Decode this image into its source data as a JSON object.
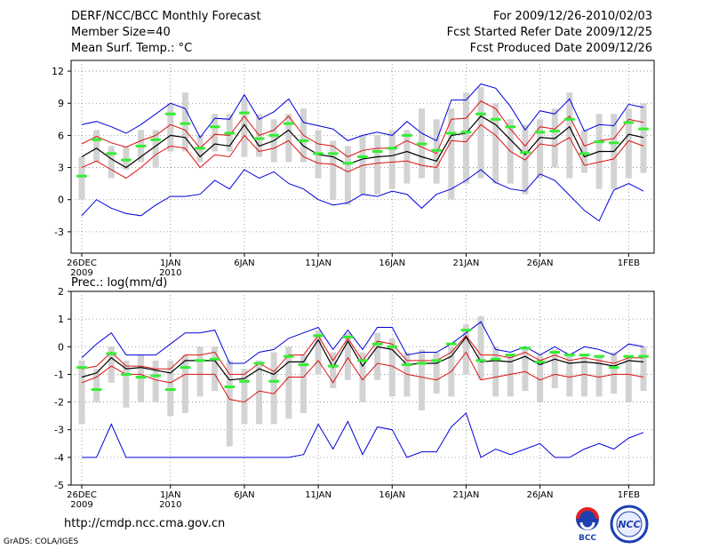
{
  "header": {
    "title": "DERF/NCC/BCC Monthly Forecast",
    "member_size": "Member Size=40",
    "variable": "Mean Surf. Temp.: °C",
    "period": "For 2009/12/26-2010/02/03",
    "started": "Fcst Started Refer Date 2009/12/25",
    "produced": "Fcst Produced Date 2009/12/26"
  },
  "footer": {
    "url": "http://cmdp.ncc.cma.gov.cn",
    "grads": "GrADS: COLA/IGES",
    "logo_left": "BCC",
    "logo_right": "NCC"
  },
  "colors": {
    "background": "#ffffff",
    "box": "#d3d3d3",
    "median": "#33ee33",
    "envelope": "#0000dd",
    "spread": "#dd1111",
    "mean": "#000000",
    "grid": "#888888"
  },
  "chart_data": [
    {
      "type": "line",
      "title": "Mean Surf. Temp.: °C",
      "ylim": [
        -5,
        13
      ],
      "yticks": [
        -3,
        0,
        3,
        6,
        9,
        12
      ],
      "xlabels": [
        {
          "day": 0,
          "text": "26DEC",
          "sub": "2009"
        },
        {
          "day": 6,
          "text": "1JAN",
          "sub": "2010"
        },
        {
          "day": 11,
          "text": "6JAN",
          "sub": ""
        },
        {
          "day": 16,
          "text": "11JAN",
          "sub": ""
        },
        {
          "day": 21,
          "text": "16JAN",
          "sub": ""
        },
        {
          "day": 26,
          "text": "21JAN",
          "sub": ""
        },
        {
          "day": 31,
          "text": "26JAN",
          "sub": ""
        },
        {
          "day": 37,
          "text": "1FEB",
          "sub": ""
        }
      ],
      "days": 39,
      "box_low": [
        0.0,
        3.5,
        2.0,
        2.8,
        3.5,
        3.0,
        4.5,
        4.5,
        3.5,
        4.5,
        4.5,
        4.0,
        4.0,
        3.5,
        3.5,
        3.5,
        2.0,
        0.0,
        -0.5,
        0.5,
        0.5,
        1.0,
        1.5,
        2.0,
        1.5,
        0.0,
        1.5,
        2.0,
        1.5,
        1.5,
        0.5,
        2.0,
        3.0,
        2.0,
        2.5,
        1.0,
        1.0,
        2.0,
        2.5
      ],
      "box_high": [
        4.0,
        6.5,
        5.0,
        5.0,
        6.5,
        6.5,
        9.0,
        10.0,
        6.0,
        8.0,
        8.0,
        9.5,
        8.0,
        7.5,
        8.0,
        8.5,
        6.5,
        5.5,
        5.0,
        6.0,
        6.0,
        6.5,
        6.5,
        8.5,
        7.5,
        8.5,
        10.0,
        10.5,
        9.0,
        7.5,
        7.0,
        7.5,
        8.5,
        10.0,
        6.5,
        8.0,
        8.0,
        8.5,
        9.0
      ],
      "median": [
        2.2,
        5.6,
        4.3,
        3.7,
        5.0,
        5.6,
        8.0,
        7.1,
        4.8,
        6.8,
        6.2,
        8.1,
        5.7,
        6.0,
        7.1,
        5.5,
        4.3,
        4.3,
        3.4,
        4.0,
        4.5,
        4.8,
        6.0,
        5.2,
        4.6,
        6.2,
        6.3,
        8.0,
        7.5,
        6.8,
        4.4,
        6.3,
        6.4,
        7.5,
        4.3,
        5.4,
        5.3,
        7.2,
        6.6
      ],
      "upper": [
        7.0,
        7.3,
        6.8,
        6.2,
        7.0,
        8.0,
        9.0,
        8.5,
        5.8,
        7.6,
        7.5,
        9.8,
        7.5,
        8.2,
        9.4,
        7.2,
        6.9,
        6.6,
        5.5,
        6.0,
        6.3,
        6.0,
        7.3,
        6.2,
        5.5,
        9.3,
        9.3,
        10.8,
        10.4,
        8.7,
        6.5,
        8.3,
        8.0,
        9.4,
        6.4,
        7.0,
        6.9,
        8.9,
        8.6
      ],
      "upper_spread": [
        5.2,
        5.9,
        5.3,
        4.9,
        5.5,
        6.0,
        7.0,
        6.5,
        4.8,
        6.1,
        6.0,
        7.8,
        6.0,
        6.5,
        7.8,
        6.0,
        5.2,
        5.0,
        4.0,
        4.6,
        4.8,
        4.8,
        5.5,
        4.9,
        4.3,
        7.5,
        7.6,
        9.2,
        8.5,
        6.6,
        5.0,
        6.8,
        6.6,
        7.8,
        5.0,
        5.5,
        5.7,
        7.5,
        7.2
      ],
      "mean": [
        4.0,
        4.8,
        3.8,
        3.0,
        4.0,
        5.0,
        6.0,
        5.8,
        4.0,
        5.2,
        5.0,
        7.0,
        5.0,
        5.5,
        6.5,
        5.0,
        4.2,
        4.0,
        3.3,
        3.8,
        4.0,
        4.1,
        4.5,
        4.0,
        3.6,
        6.0,
        6.2,
        7.8,
        7.0,
        5.6,
        4.2,
        5.8,
        5.7,
        6.8,
        4.0,
        4.5,
        4.5,
        6.1,
        5.8
      ],
      "lower_spread": [
        3.0,
        3.6,
        2.8,
        2.0,
        3.0,
        4.2,
        5.0,
        4.8,
        3.0,
        4.2,
        4.0,
        6.0,
        4.5,
        4.8,
        5.5,
        4.0,
        3.4,
        3.3,
        2.6,
        3.2,
        3.4,
        3.5,
        3.6,
        3.2,
        3.0,
        5.5,
        5.4,
        7.0,
        6.0,
        4.5,
        3.7,
        5.2,
        5.0,
        5.8,
        3.2,
        3.5,
        3.8,
        5.5,
        5.0
      ],
      "lower": [
        -1.5,
        0.0,
        -0.8,
        -1.3,
        -1.5,
        -0.5,
        0.3,
        0.3,
        0.5,
        1.8,
        1.0,
        2.8,
        2.0,
        2.6,
        1.5,
        1.0,
        0.0,
        -0.5,
        -0.3,
        0.5,
        0.3,
        0.8,
        0.5,
        -0.8,
        0.5,
        1.0,
        1.8,
        2.8,
        1.6,
        1.0,
        0.8,
        2.4,
        1.8,
        0.4,
        -1.0,
        -2.0,
        0.9,
        1.5,
        0.8
      ]
    },
    {
      "type": "line",
      "title": "Prec.: log(mm/d)",
      "ylim": [
        -5,
        2
      ],
      "yticks": [
        -5,
        -4,
        -3,
        -2,
        -1,
        0,
        1,
        2
      ],
      "xlabels": [
        {
          "day": 0,
          "text": "26DEC",
          "sub": "2009"
        },
        {
          "day": 6,
          "text": "1JAN",
          "sub": "2010"
        },
        {
          "day": 11,
          "text": "6JAN",
          "sub": ""
        },
        {
          "day": 16,
          "text": "11JAN",
          "sub": ""
        },
        {
          "day": 21,
          "text": "16JAN",
          "sub": ""
        },
        {
          "day": 26,
          "text": "21JAN",
          "sub": ""
        },
        {
          "day": 31,
          "text": "26JAN",
          "sub": ""
        },
        {
          "day": 37,
          "text": "1FEB",
          "sub": ""
        }
      ],
      "days": 39,
      "box_low": [
        -2.8,
        -2.0,
        -1.3,
        -2.2,
        -2.0,
        -2.0,
        -2.5,
        -2.4,
        -1.8,
        -1.6,
        -3.6,
        -2.8,
        -2.8,
        -2.8,
        -2.6,
        -2.4,
        -1.0,
        -1.5,
        -1.2,
        -2.0,
        -1.2,
        -1.8,
        -1.8,
        -2.3,
        -1.7,
        -1.8,
        -1.0,
        -1.2,
        -1.8,
        -1.8,
        -1.6,
        -2.0,
        -1.5,
        -1.8,
        -1.8,
        -1.8,
        -1.7,
        -2.0,
        -1.6
      ],
      "box_high": [
        -0.5,
        -0.8,
        0.0,
        -0.5,
        -0.3,
        -0.5,
        -0.5,
        -0.3,
        0.0,
        0.0,
        -0.5,
        -0.8,
        -0.5,
        -0.2,
        0.0,
        -0.3,
        0.6,
        -0.2,
        0.5,
        -0.2,
        0.5,
        0.3,
        -0.2,
        -0.1,
        -0.2,
        0.0,
        0.8,
        1.1,
        0.0,
        -0.3,
        0.0,
        -0.3,
        -0.1,
        -0.3,
        -0.3,
        -0.3,
        -0.2,
        -0.3,
        0.0
      ],
      "median": [
        -0.75,
        -1.55,
        -0.25,
        -1.0,
        -1.1,
        -1.05,
        -1.55,
        -0.75,
        -0.5,
        -0.45,
        -1.45,
        -1.25,
        -0.6,
        -1.25,
        -0.35,
        -0.65,
        0.4,
        -0.7,
        0.35,
        -0.5,
        0.1,
        0.0,
        -0.65,
        -0.6,
        -0.5,
        0.1,
        0.6,
        -0.5,
        -0.45,
        -0.3,
        -0.05,
        -0.55,
        -0.2,
        -0.3,
        -0.3,
        -0.35,
        -0.75,
        -0.35,
        -0.35
      ],
      "upper": [
        -0.4,
        0.1,
        0.5,
        -0.3,
        -0.3,
        -0.3,
        0.1,
        0.5,
        0.5,
        0.6,
        -0.6,
        -0.6,
        -0.2,
        -0.1,
        0.3,
        0.5,
        0.7,
        -0.1,
        0.6,
        -0.1,
        0.7,
        0.7,
        -0.3,
        -0.2,
        -0.2,
        0.1,
        0.5,
        0.9,
        -0.1,
        -0.2,
        0.0,
        -0.3,
        0.0,
        -0.3,
        0.0,
        -0.1,
        -0.3,
        0.1,
        0.0
      ],
      "upper_spread": [
        -0.8,
        -0.7,
        -0.2,
        -0.7,
        -0.7,
        -0.8,
        -0.8,
        -0.3,
        -0.3,
        -0.2,
        -1.0,
        -1.0,
        -0.6,
        -0.9,
        -0.3,
        -0.3,
        0.4,
        -0.5,
        0.3,
        -0.5,
        0.2,
        0.1,
        -0.5,
        -0.5,
        -0.5,
        -0.2,
        0.4,
        -0.3,
        -0.3,
        -0.4,
        -0.2,
        -0.5,
        -0.3,
        -0.5,
        -0.4,
        -0.5,
        -0.6,
        -0.4,
        -0.4
      ],
      "mean": [
        -1.1,
        -0.95,
        -0.4,
        -0.8,
        -0.75,
        -0.85,
        -0.95,
        -0.5,
        -0.5,
        -0.5,
        -1.2,
        -1.15,
        -0.8,
        -1.0,
        -0.55,
        -0.55,
        0.25,
        -0.75,
        0.2,
        -0.7,
        0.0,
        -0.1,
        -0.65,
        -0.6,
        -0.6,
        -0.35,
        0.35,
        -0.55,
        -0.5,
        -0.55,
        -0.35,
        -0.65,
        -0.45,
        -0.6,
        -0.55,
        -0.6,
        -0.7,
        -0.5,
        -0.55
      ],
      "lower_spread": [
        -1.3,
        -1.1,
        -0.7,
        -1.0,
        -1.0,
        -1.2,
        -1.3,
        -1.0,
        -1.0,
        -1.0,
        -1.9,
        -2.0,
        -1.6,
        -1.7,
        -1.1,
        -1.1,
        -0.5,
        -1.3,
        -0.4,
        -1.2,
        -0.6,
        -0.7,
        -1.0,
        -1.1,
        -1.2,
        -0.9,
        -0.2,
        -1.2,
        -1.1,
        -1.0,
        -0.9,
        -1.2,
        -1.0,
        -1.1,
        -1.0,
        -1.1,
        -1.0,
        -1.0,
        -1.1
      ],
      "lower": [
        -4.0,
        -4.0,
        -2.8,
        -4.0,
        -4.0,
        -4.0,
        -4.0,
        -4.0,
        -4.0,
        -4.0,
        -4.0,
        -4.0,
        -4.0,
        -4.0,
        -4.0,
        -3.9,
        -2.8,
        -3.7,
        -2.7,
        -3.9,
        -2.9,
        -3.0,
        -4.0,
        -3.8,
        -3.8,
        -2.9,
        -2.4,
        -4.0,
        -3.7,
        -3.9,
        -3.7,
        -3.5,
        -4.0,
        -4.0,
        -3.7,
        -3.5,
        -3.7,
        -3.3,
        -3.1
      ]
    }
  ]
}
